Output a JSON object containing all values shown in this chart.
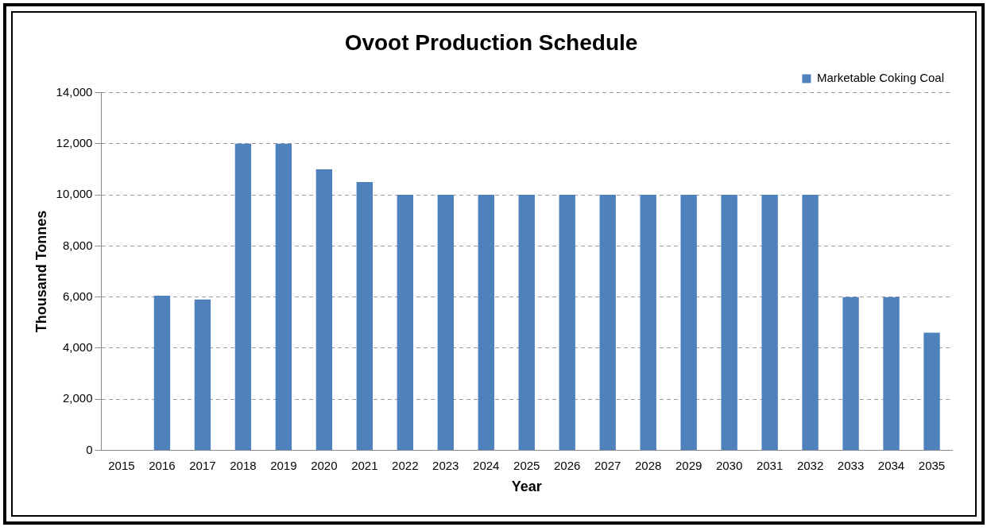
{
  "chart_data": {
    "type": "bar",
    "title": "Ovoot Production Schedule",
    "xlabel": "Year",
    "ylabel": "Thousand Tonnes",
    "categories": [
      "2015",
      "2016",
      "2017",
      "2018",
      "2019",
      "2020",
      "2021",
      "2022",
      "2023",
      "2024",
      "2025",
      "2026",
      "2027",
      "2028",
      "2029",
      "2030",
      "2031",
      "2032",
      "2033",
      "2034",
      "2035"
    ],
    "series": [
      {
        "name": "Marketable Coking Coal",
        "color": "#4f81bd",
        "values": [
          0,
          6050,
          5900,
          12000,
          12000,
          11000,
          10500,
          10000,
          10000,
          10000,
          10000,
          10000,
          10000,
          10000,
          10000,
          10000,
          10000,
          10000,
          6000,
          6000,
          4600
        ]
      }
    ],
    "ylim": [
      0,
      14000
    ],
    "yticks": [
      {
        "value": 0,
        "label": "0"
      },
      {
        "value": 2000,
        "label": "2,000"
      },
      {
        "value": 4000,
        "label": "4,000"
      },
      {
        "value": 6000,
        "label": "6,000"
      },
      {
        "value": 8000,
        "label": "8,000"
      },
      {
        "value": 10000,
        "label": "10,000"
      },
      {
        "value": 12000,
        "label": "12,000"
      },
      {
        "value": 14000,
        "label": "14,000"
      }
    ],
    "grid": "y",
    "legend": "top right"
  }
}
